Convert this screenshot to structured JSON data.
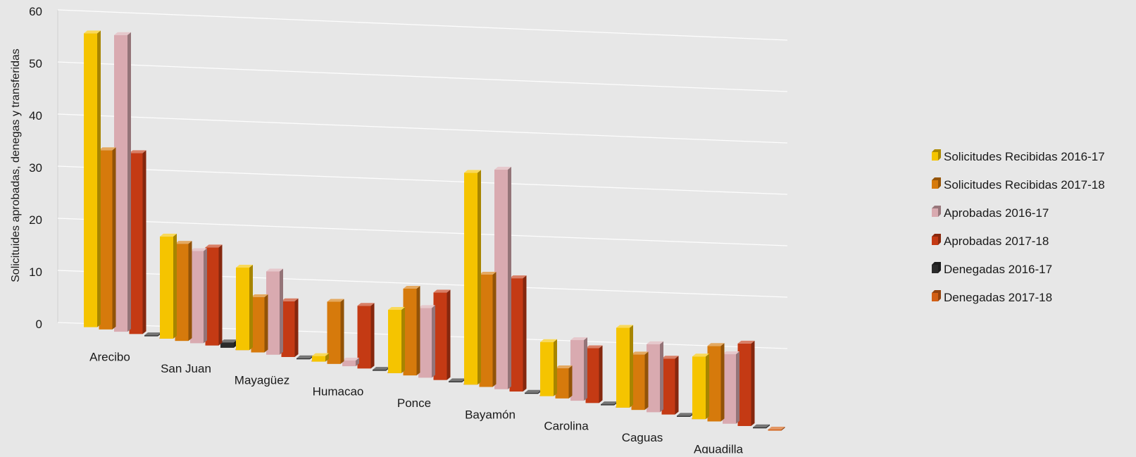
{
  "chart_data": {
    "type": "bar",
    "title": "",
    "xlabel": "",
    "ylabel": "Solicituides aprobadas, denegas y transferidas",
    "ylim": [
      0,
      60
    ],
    "yticks": [
      0,
      10,
      20,
      30,
      40,
      50,
      60
    ],
    "grid": true,
    "legend_position": "right",
    "categories": [
      "Arecibo",
      "San Juan",
      "Mayagüez",
      "Humacao",
      "Ponce",
      "Bayamón",
      "Carolina",
      "Caguas",
      "Aguadilla"
    ],
    "series": [
      {
        "name": "Solicitudes Recibidas 2016-17",
        "color": "#f5c400",
        "values": [
          56,
          19,
          15,
          1,
          11,
          36,
          9,
          13,
          10
        ]
      },
      {
        "name": "Solicitudes Recibidas 2017-18",
        "color": "#d67a0c",
        "values": [
          34,
          18,
          10,
          11,
          15,
          19,
          5,
          9,
          12
        ]
      },
      {
        "name": "Aprobadas 2016-17",
        "color": "#d9aab0",
        "values": [
          56,
          17,
          15,
          1,
          12,
          37,
          10,
          11,
          11
        ]
      },
      {
        "name": "Aprobadas 2017-18",
        "color": "#c43a14",
        "values": [
          34,
          18,
          10,
          11,
          15,
          19,
          9,
          9,
          13
        ]
      },
      {
        "name": "Denegadas 2016-17",
        "color": "#2a2a2a",
        "values": [
          0,
          1,
          0,
          0,
          0,
          0,
          0,
          0,
          0
        ]
      },
      {
        "name": "Denegadas 2017-18",
        "color": "#d35f14",
        "values": [
          0,
          0,
          0,
          0,
          0,
          0,
          0,
          0,
          0
        ]
      }
    ]
  }
}
